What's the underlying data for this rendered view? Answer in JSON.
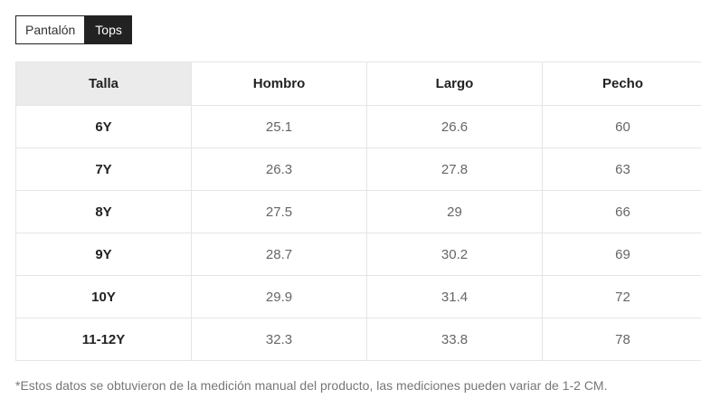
{
  "tabs": [
    {
      "label": "Pantalón",
      "active": false
    },
    {
      "label": "Tops",
      "active": true
    }
  ],
  "table": {
    "headers": [
      "Talla",
      "Hombro",
      "Largo",
      "Pecho"
    ],
    "rows": [
      [
        "6Y",
        "25.1",
        "26.6",
        "60"
      ],
      [
        "7Y",
        "26.3",
        "27.8",
        "63"
      ],
      [
        "8Y",
        "27.5",
        "29",
        "66"
      ],
      [
        "9Y",
        "28.7",
        "30.2",
        "69"
      ],
      [
        "10Y",
        "29.9",
        "31.4",
        "72"
      ],
      [
        "11-12Y",
        "32.3",
        "33.8",
        "78"
      ]
    ]
  },
  "footnote": "*Estos datos se obtuvieron de la medición manual del producto, las mediciones pueden variar de 1-2 CM.",
  "colors": {
    "active_tab_bg": "#222222",
    "header_highlight": "#ebebeb",
    "border": "#e5e5e5"
  }
}
